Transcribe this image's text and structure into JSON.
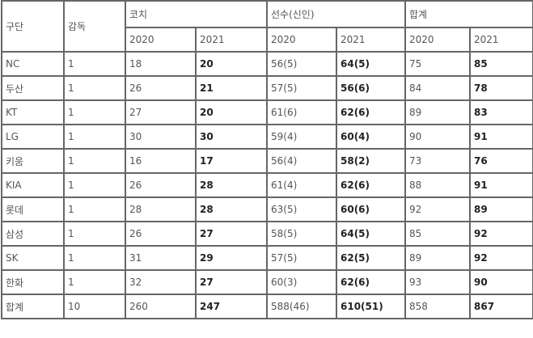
{
  "headers": {
    "team": "구단",
    "manager": "감독",
    "coach": "코치",
    "players": "선수(신인)",
    "total": "합계",
    "y2020": "2020",
    "y2021": "2021"
  },
  "rows": [
    {
      "team": "NC",
      "manager": "1",
      "coach2020": "18",
      "coach2021": "20",
      "players2020": "56(5)",
      "players2021": "64(5)",
      "total2020": "75",
      "total2021": "85"
    },
    {
      "team": "두산",
      "manager": "1",
      "coach2020": "26",
      "coach2021": "21",
      "players2020": "57(5)",
      "players2021": "56(6)",
      "total2020": "84",
      "total2021": "78"
    },
    {
      "team": "KT",
      "manager": "1",
      "coach2020": "27",
      "coach2021": "20",
      "players2020": "61(6)",
      "players2021": "62(6)",
      "total2020": "89",
      "total2021": "83"
    },
    {
      "team": "LG",
      "manager": "1",
      "coach2020": "30",
      "coach2021": "30",
      "players2020": "59(4)",
      "players2021": "60(4)",
      "total2020": "90",
      "total2021": "91"
    },
    {
      "team": "키움",
      "manager": "1",
      "coach2020": "16",
      "coach2021": "17",
      "players2020": "56(4)",
      "players2021": "58(2)",
      "total2020": "73",
      "total2021": "76"
    },
    {
      "team": "KIA",
      "manager": "1",
      "coach2020": "26",
      "coach2021": "28",
      "players2020": "61(4)",
      "players2021": "62(6)",
      "total2020": "88",
      "total2021": "91"
    },
    {
      "team": "롯데",
      "manager": "1",
      "coach2020": "28",
      "coach2021": "28",
      "players2020": "63(5)",
      "players2021": "60(6)",
      "total2020": "92",
      "total2021": "89"
    },
    {
      "team": "삼성",
      "manager": "1",
      "coach2020": "26",
      "coach2021": "27",
      "players2020": "58(5)",
      "players2021": "64(5)",
      "total2020": "85",
      "total2021": "92"
    },
    {
      "team": "SK",
      "manager": "1",
      "coach2020": "31",
      "coach2021": "29",
      "players2020": "57(5)",
      "players2021": "62(5)",
      "total2020": "89",
      "total2021": "92"
    },
    {
      "team": "한화",
      "manager": "1",
      "coach2020": "32",
      "coach2021": "27",
      "players2020": "60(3)",
      "players2021": "62(6)",
      "total2020": "93",
      "total2021": "90"
    },
    {
      "team": "합계",
      "manager": "10",
      "coach2020": "260",
      "coach2021": "247",
      "players2020": "588(46)",
      "players2021": "610(51)",
      "total2020": "858",
      "total2021": "867"
    }
  ]
}
